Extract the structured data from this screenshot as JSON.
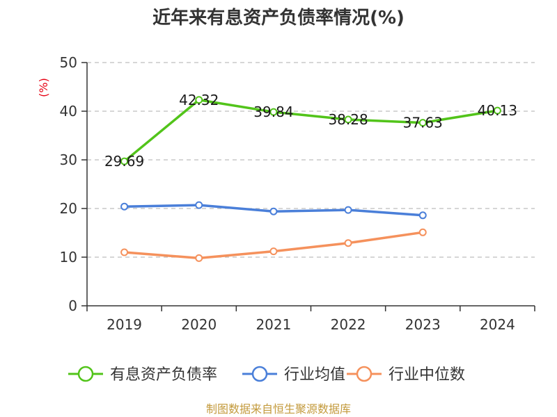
{
  "chart_data": {
    "type": "line",
    "title": "近年来有息资产负债率情况(%)",
    "ylabel": "(%)",
    "xlabel": "",
    "categories": [
      "2019",
      "2020",
      "2021",
      "2022",
      "2023",
      "2024"
    ],
    "ylim": [
      0,
      50
    ],
    "yticks": [
      0,
      10,
      20,
      30,
      40,
      50
    ],
    "grid": true,
    "legend_position": "bottom",
    "series": [
      {
        "name": "有息资产负债率",
        "color": "#52c41a",
        "values": [
          29.69,
          42.32,
          39.84,
          38.28,
          37.63,
          40.13
        ],
        "labels": [
          "29.69",
          "42.32",
          "39.84",
          "38.28",
          "37.63",
          "40.13"
        ]
      },
      {
        "name": "行业均值",
        "color": "#4a7fd9",
        "values": [
          20.4,
          20.7,
          19.4,
          19.7,
          18.6,
          null
        ]
      },
      {
        "name": "行业中位数",
        "color": "#f5915c",
        "values": [
          11.0,
          9.8,
          11.2,
          12.9,
          15.1,
          null
        ]
      }
    ]
  },
  "source": "制图数据来自恒生聚源数据库"
}
